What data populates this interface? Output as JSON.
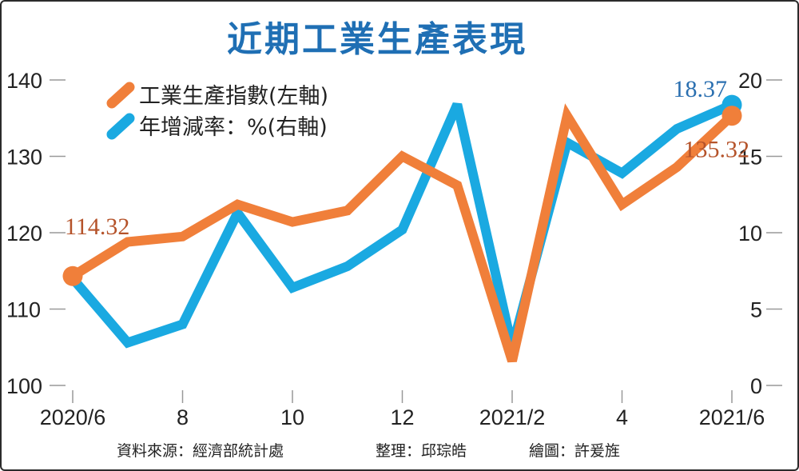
{
  "chart_data": {
    "type": "line",
    "title": "近期工業生產表現",
    "x": [
      "2020/6",
      "2020/7",
      "2020/8",
      "2020/9",
      "2020/10",
      "2020/11",
      "2020/12",
      "2021/1",
      "2021/2",
      "2021/3",
      "2021/4",
      "2021/5",
      "2021/6"
    ],
    "xtick_labels": [
      "2020/6",
      "",
      "8",
      "",
      "10",
      "",
      "12",
      "",
      "2021/2",
      "",
      "4",
      "",
      "2021/6"
    ],
    "left_axis": {
      "ylim": [
        100,
        140
      ],
      "ticks": [
        "100",
        "110",
        "120",
        "130",
        "140"
      ]
    },
    "right_axis": {
      "ylim": [
        0,
        20
      ],
      "ticks": [
        "0",
        "5",
        "10",
        "15",
        "20"
      ]
    },
    "series": [
      {
        "name": "工業生產指數(左軸)",
        "axis": "left",
        "color": "#f07f3a",
        "values": [
          114.32,
          118.8,
          119.5,
          123.7,
          121.4,
          122.9,
          130.0,
          126.2,
          103.2,
          135.3,
          123.7,
          128.6,
          135.32
        ]
      },
      {
        "name": "年增減率：%(右軸)",
        "axis": "right",
        "color": "#1aa9e1",
        "values": [
          7.0,
          2.8,
          4.0,
          11.3,
          6.4,
          7.8,
          10.2,
          18.4,
          2.5,
          15.9,
          13.9,
          16.8,
          18.37
        ]
      }
    ],
    "data_labels": [
      {
        "text": "114.32",
        "series": 0,
        "index": 0,
        "color": "#b5532a"
      },
      {
        "text": "135.32",
        "series": 0,
        "index": 12,
        "color": "#b5532a"
      },
      {
        "text": "18.37",
        "series": 1,
        "index": 12,
        "color": "#2a6fb0"
      }
    ],
    "source": "資料來源：經濟部統計處",
    "editor": "整理：邱琮皓",
    "artist": "繪圖：許爰旌"
  }
}
